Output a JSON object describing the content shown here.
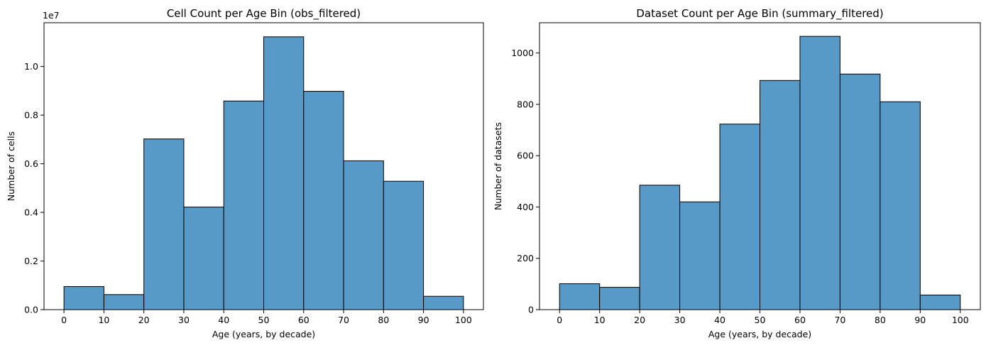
{
  "chart_data": [
    {
      "type": "bar",
      "title": "Cell Count per Age Bin (obs_filtered)",
      "xlabel": "Age (years, by decade)",
      "ylabel": "Number of cells",
      "y_scale_label": "1e7",
      "bin_edges": [
        0,
        10,
        20,
        30,
        40,
        50,
        60,
        70,
        80,
        90,
        100
      ],
      "values": [
        0.95,
        0.62,
        7.02,
        4.22,
        8.58,
        11.22,
        8.98,
        6.12,
        5.28,
        0.55
      ],
      "xlim": [
        -5,
        105
      ],
      "ylim": [
        0,
        11.8
      ],
      "xticks": [
        0,
        10,
        20,
        30,
        40,
        50,
        60,
        70,
        80,
        90,
        100
      ],
      "xtick_labels": [
        "0",
        "10",
        "20",
        "30",
        "40",
        "50",
        "60",
        "70",
        "80",
        "90",
        "100"
      ],
      "yticks": [
        0,
        2,
        4,
        6,
        8,
        10
      ],
      "ytick_labels": [
        "0.0",
        "0.2",
        "0.4",
        "0.6",
        "0.8",
        "1.0"
      ],
      "color": "#5799c7"
    },
    {
      "type": "bar",
      "title": "Dataset Count per Age Bin (summary_filtered)",
      "xlabel": "Age (years, by decade)",
      "ylabel": "Number of datasets",
      "bin_edges": [
        0,
        10,
        20,
        30,
        40,
        50,
        60,
        70,
        80,
        90,
        100
      ],
      "values": [
        101,
        87,
        485,
        420,
        723,
        893,
        1065,
        918,
        810,
        57
      ],
      "xlim": [
        -5,
        105
      ],
      "ylim": [
        0,
        1118
      ],
      "xticks": [
        0,
        10,
        20,
        30,
        40,
        50,
        60,
        70,
        80,
        90,
        100
      ],
      "xtick_labels": [
        "0",
        "10",
        "20",
        "30",
        "40",
        "50",
        "60",
        "70",
        "80",
        "90",
        "100"
      ],
      "yticks": [
        0,
        200,
        400,
        600,
        800,
        1000
      ],
      "ytick_labels": [
        "0",
        "200",
        "400",
        "600",
        "800",
        "1000"
      ],
      "color": "#5799c7"
    }
  ]
}
